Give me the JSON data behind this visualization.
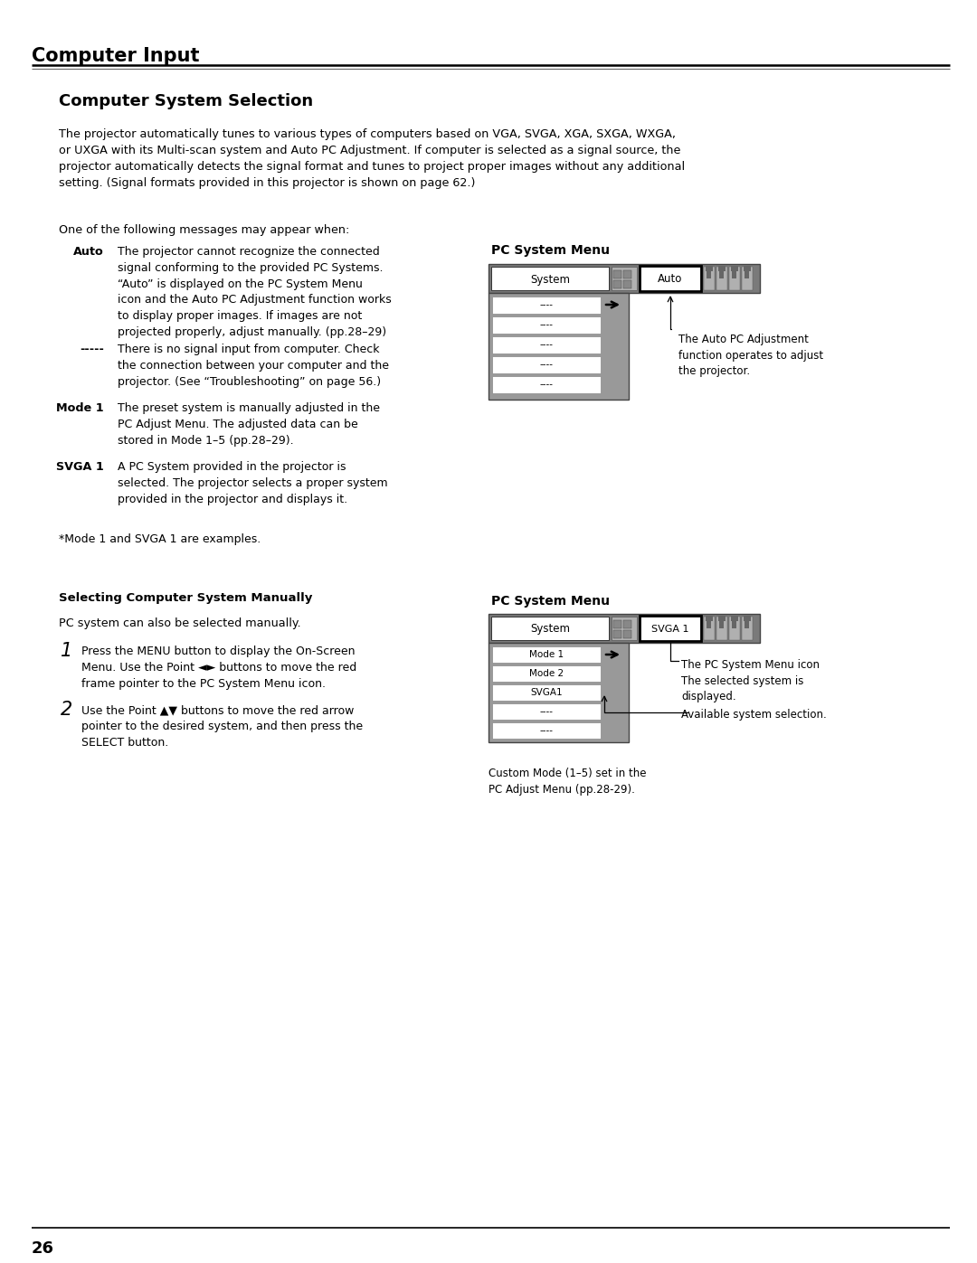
{
  "bg_color": "#ffffff",
  "page_number": "26",
  "section_title": "Computer Input",
  "subsection_title": "Computer System Selection",
  "body_text": "The projector automatically tunes to various types of computers based on VGA, SVGA, XGA, SXGA, WXGA,\nor UXGA with its Multi-scan system and Auto PC Adjustment. If computer is selected as a signal source, the\nprojector automatically detects the signal format and tunes to project proper images without any additional\nsetting. (Signal formats provided in this projector is shown on page 62.)",
  "intro_line": "One of the following messages may appear when:",
  "items": [
    {
      "label": "Auto",
      "text": "The projector cannot recognize the connected\nsignal conforming to the provided PC Systems.\n“Auto” is displayed on the PC System Menu\nicon and the Auto PC Adjustment function works\nto display proper images. If images are not\nprojected properly, adjust manually. (pp.28–29)"
    },
    {
      "label": "-----",
      "text": "There is no signal input from computer. Check\nthe connection between your computer and the\nprojector. (See “Troubleshooting” on page 56.)"
    },
    {
      "label": "Mode 1",
      "text": "The preset system is manually adjusted in the\nPC Adjust Menu. The adjusted data can be\nstored in Mode 1–5 (pp.28–29)."
    },
    {
      "label": "SVGA 1",
      "text": "A PC System provided in the projector is\nselected. The projector selects a proper system\nprovided in the projector and displays it."
    }
  ],
  "footnote": "*Mode 1 and SVGA 1 are examples.",
  "pc_menu1_title": "PC System Menu",
  "auto_caption": "The Auto PC Adjustment\nfunction operates to adjust\nthe projector.",
  "manual_section_title": "Selecting Computer System Manually",
  "manual_intro": "PC system can also be selected manually.",
  "manual_items": [
    {
      "num": "1",
      "text": "Press the MENU button to display the On-Screen\nMenu. Use the Point ◄► buttons to move the red\nframe pointer to the PC System Menu icon."
    },
    {
      "num": "2",
      "text": "Use the Point ▲▼ buttons to move the red arrow\npointer to the desired system, and then press the\nSELECT button."
    }
  ],
  "pc_menu2_title": "PC System Menu",
  "menu2_caption1": "The PC System Menu icon\nThe selected system is\ndisplayed.",
  "menu2_caption2": "Available system selection.",
  "menu2_caption3": "Custom Mode (1–5) set in the\nPC Adjust Menu (pp.28-29)."
}
